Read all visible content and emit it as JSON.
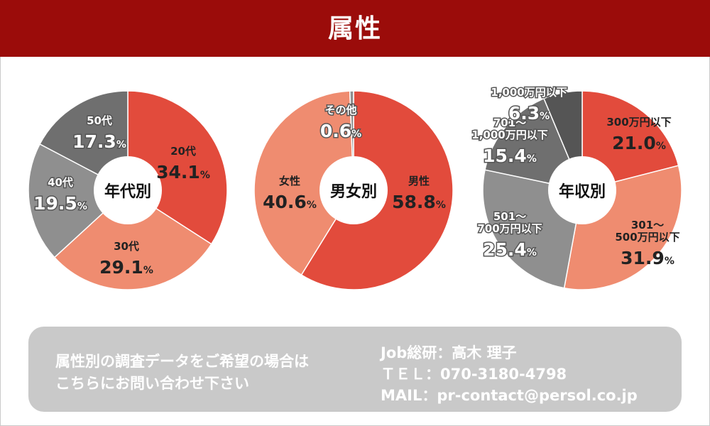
{
  "header": {
    "title": "属性"
  },
  "colors": {
    "header_bg": "#9b0c0a",
    "red": "#e24b3c",
    "salmon": "#ef8c70",
    "gray_dark": "#6f6f6f",
    "gray_mid": "#8f8f8f",
    "gray_darker": "#555555",
    "contact_bg": "#c9c9c9"
  },
  "chart_data": [
    {
      "type": "pie",
      "title": "年代別",
      "categories": [
        "20代",
        "30代",
        "40代",
        "50代"
      ],
      "values": [
        34.1,
        29.1,
        19.5,
        17.3
      ],
      "unit": "%",
      "colors": [
        "#e24b3c",
        "#ef8c70",
        "#8f8f8f",
        "#6f6f6f"
      ]
    },
    {
      "type": "pie",
      "title": "男女別",
      "categories": [
        "男性",
        "女性",
        "その他"
      ],
      "values": [
        58.8,
        40.6,
        0.6
      ],
      "unit": "%",
      "colors": [
        "#e24b3c",
        "#ef8c70",
        "#8f8f8f"
      ]
    },
    {
      "type": "pie",
      "title": "年収別",
      "categories": [
        "300万円以下",
        "301～500万円以下",
        "501～700万円以下",
        "701～1,000万円以下",
        "1,000万円以下"
      ],
      "values": [
        21.0,
        31.9,
        25.4,
        15.4,
        6.3
      ],
      "unit": "%",
      "colors": [
        "#e24b3c",
        "#ef8c70",
        "#8f8f8f",
        "#6f6f6f",
        "#555555"
      ]
    }
  ],
  "contact": {
    "lines_left": [
      "属性別の調査データをご希望の場合は",
      "こちらにお問い合わせ下さい"
    ],
    "lines_right": [
      "Job総研：高木 理子",
      "ＴＥＬ：070-3180-4798",
      "MAIL：pr-contact@persol.co.jp"
    ]
  }
}
